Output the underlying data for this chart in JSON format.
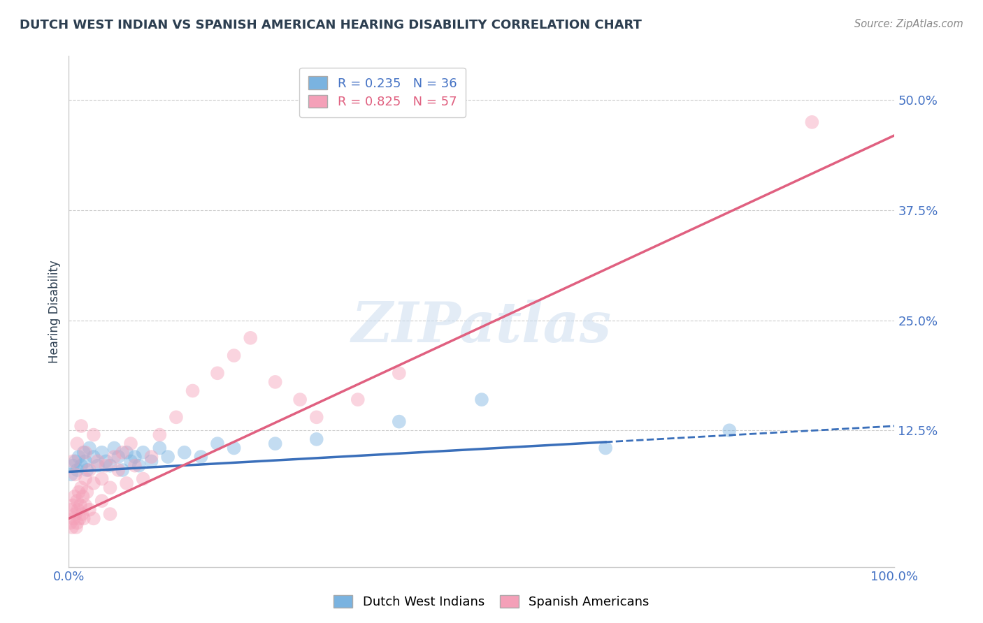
{
  "title": "DUTCH WEST INDIAN VS SPANISH AMERICAN HEARING DISABILITY CORRELATION CHART",
  "source": "Source: ZipAtlas.com",
  "ylabel": "Hearing Disability",
  "watermark": "ZIPatlas",
  "blue_scatter": [
    [
      0.3,
      7.5
    ],
    [
      0.5,
      8.5
    ],
    [
      0.8,
      9.0
    ],
    [
      1.0,
      8.0
    ],
    [
      1.2,
      9.5
    ],
    [
      1.5,
      8.5
    ],
    [
      1.8,
      10.0
    ],
    [
      2.0,
      9.0
    ],
    [
      2.2,
      8.0
    ],
    [
      2.5,
      10.5
    ],
    [
      3.0,
      9.5
    ],
    [
      3.5,
      8.5
    ],
    [
      4.0,
      10.0
    ],
    [
      4.5,
      9.0
    ],
    [
      5.0,
      8.5
    ],
    [
      5.5,
      10.5
    ],
    [
      6.0,
      9.5
    ],
    [
      6.5,
      8.0
    ],
    [
      7.0,
      10.0
    ],
    [
      7.5,
      9.0
    ],
    [
      8.0,
      9.5
    ],
    [
      8.5,
      8.5
    ],
    [
      9.0,
      10.0
    ],
    [
      10.0,
      9.0
    ],
    [
      11.0,
      10.5
    ],
    [
      12.0,
      9.5
    ],
    [
      14.0,
      10.0
    ],
    [
      16.0,
      9.5
    ],
    [
      18.0,
      11.0
    ],
    [
      20.0,
      10.5
    ],
    [
      25.0,
      11.0
    ],
    [
      30.0,
      11.5
    ],
    [
      40.0,
      13.5
    ],
    [
      50.0,
      16.0
    ],
    [
      65.0,
      10.5
    ],
    [
      80.0,
      12.5
    ]
  ],
  "pink_scatter": [
    [
      0.2,
      2.0
    ],
    [
      0.3,
      3.5
    ],
    [
      0.4,
      1.5
    ],
    [
      0.5,
      4.0
    ],
    [
      0.6,
      2.5
    ],
    [
      0.7,
      5.0
    ],
    [
      0.8,
      3.0
    ],
    [
      0.9,
      1.5
    ],
    [
      1.0,
      4.5
    ],
    [
      1.0,
      2.0
    ],
    [
      1.1,
      3.5
    ],
    [
      1.2,
      5.5
    ],
    [
      1.3,
      2.5
    ],
    [
      1.4,
      4.0
    ],
    [
      1.5,
      6.0
    ],
    [
      1.6,
      3.0
    ],
    [
      1.7,
      5.0
    ],
    [
      1.8,
      2.5
    ],
    [
      2.0,
      7.0
    ],
    [
      2.0,
      4.0
    ],
    [
      2.2,
      5.5
    ],
    [
      2.5,
      8.0
    ],
    [
      2.5,
      3.5
    ],
    [
      3.0,
      6.5
    ],
    [
      3.0,
      2.5
    ],
    [
      3.5,
      9.0
    ],
    [
      4.0,
      7.0
    ],
    [
      4.0,
      4.5
    ],
    [
      4.5,
      8.5
    ],
    [
      5.0,
      6.0
    ],
    [
      5.0,
      3.0
    ],
    [
      5.5,
      9.5
    ],
    [
      6.0,
      8.0
    ],
    [
      6.5,
      10.0
    ],
    [
      7.0,
      6.5
    ],
    [
      7.5,
      11.0
    ],
    [
      8.0,
      8.5
    ],
    [
      9.0,
      7.0
    ],
    [
      10.0,
      9.5
    ],
    [
      11.0,
      12.0
    ],
    [
      13.0,
      14.0
    ],
    [
      15.0,
      17.0
    ],
    [
      18.0,
      19.0
    ],
    [
      20.0,
      21.0
    ],
    [
      22.0,
      23.0
    ],
    [
      25.0,
      18.0
    ],
    [
      28.0,
      16.0
    ],
    [
      30.0,
      14.0
    ],
    [
      35.0,
      16.0
    ],
    [
      40.0,
      19.0
    ],
    [
      0.5,
      9.0
    ],
    [
      1.0,
      11.0
    ],
    [
      1.5,
      13.0
    ],
    [
      2.0,
      10.0
    ],
    [
      3.0,
      12.0
    ],
    [
      90.0,
      47.5
    ],
    [
      0.8,
      7.5
    ]
  ],
  "blue_line_intercept": 7.8,
  "blue_line_slope": 0.052,
  "blue_solid_end": 65,
  "pink_line_intercept": 2.5,
  "pink_line_slope": 0.435,
  "xlim": [
    0,
    100
  ],
  "ylim": [
    -3,
    55
  ],
  "yticks": [
    12.5,
    25.0,
    37.5,
    50.0
  ],
  "xticks": [
    0,
    100
  ],
  "grid_color": "#cccccc",
  "blue_color": "#7ab3e0",
  "pink_color": "#f4a0b8",
  "blue_line_color": "#3a6fba",
  "pink_line_color": "#e06080",
  "title_color": "#2c3e50",
  "axis_label_color": "#4472c4",
  "source_color": "#888888",
  "background_color": "#ffffff"
}
